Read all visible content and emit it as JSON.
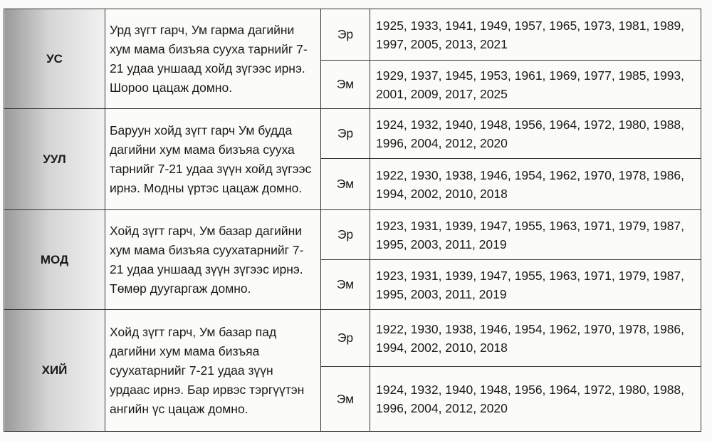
{
  "rows": [
    {
      "element": "УС",
      "text": "Урд зүгт гарч, Ум гарма дагийни хум мама бизъяа сууха тарнийг 7-21 удаа уншаад хойд зүгээс ирнэ. Шороо цацаж домно.",
      "male": {
        "label": "Эр",
        "years": "1925, 1933, 1941, 1949, 1957, 1965, 1973, 1981, 1989, 1997, 2005, 2013, 2021"
      },
      "female": {
        "label": "Эм",
        "years": "1929, 1937, 1945, 1953, 1961, 1969, 1977, 1985, 1993, 2001, 2009, 2017, 2025"
      }
    },
    {
      "element": "УУЛ",
      "text": "Баруун хойд зүгт гарч Ум будда дагийни хум мама бизъяа сууха тарнийг 7-21 удаа зүүн хойд зүгээс ирнэ. Модны үртэс цацаж домно.",
      "male": {
        "label": "Эр",
        "years": "1924, 1932, 1940, 1948, 1956, 1964, 1972, 1980, 1988, 1996, 2004, 2012, 2020"
      },
      "female": {
        "label": "Эм",
        "years": "1922, 1930, 1938, 1946, 1954, 1962, 1970, 1978, 1986, 1994, 2002, 2010, 2018"
      }
    },
    {
      "element": "МОД",
      "text": "Хойд зүгт гарч, Ум базар дагийни хум мама бизъяа суухатарнийг 7-21 удаа уншаад зүүн зүгээс ирнэ. Төмөр дуугаргаж домно.",
      "male": {
        "label": "Эр",
        "years": "1923, 1931, 1939, 1947, 1955, 1963, 1971, 1979, 1987, 1995, 2003, 2011, 2019"
      },
      "female": {
        "label": "Эм",
        "years": "1923, 1931, 1939, 1947, 1955, 1963, 1971, 1979, 1987, 1995, 2003, 2011, 2019"
      }
    },
    {
      "element": "ХИЙ",
      "text": "Хойд зүгт гарч, Ум базар пад дагийни хум мама бизъяа суухатарнийг 7-21 удаа зүүн урдаас ирнэ. Бар ирвэс тэргүүтэн ангийн үс цацаж домно.",
      "male": {
        "label": "Эр",
        "years": "1922, 1930, 1938, 1946, 1954, 1962, 1970, 1978, 1986, 1994, 2002, 2010, 2018"
      },
      "female": {
        "label": "Эм",
        "years": "1924, 1932, 1940, 1948, 1956, 1964, 1972, 1980, 1988, 1996, 2004, 2012, 2020"
      }
    }
  ]
}
